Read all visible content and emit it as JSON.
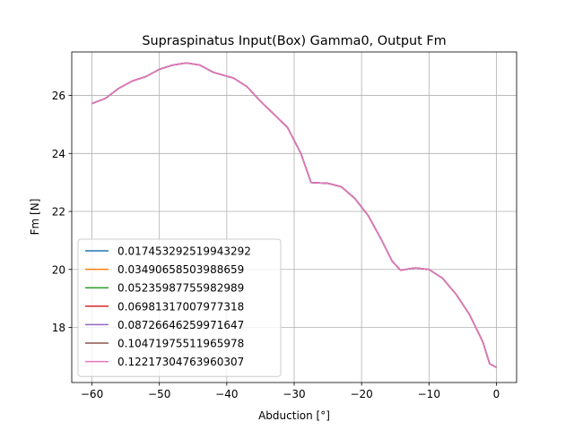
{
  "chart_data": {
    "type": "line",
    "title": "Supraspinatus Input(Box) Gamma0, Output Fm",
    "xlabel": "Abduction [°]",
    "ylabel": "Fm [N]",
    "xlim": [
      -63,
      3
    ],
    "ylim": [
      16.1,
      27.5
    ],
    "xticks": [
      -60,
      -50,
      -40,
      -30,
      -20,
      -10,
      0
    ],
    "xtick_labels": [
      "−60",
      "−50",
      "−40",
      "−30",
      "−20",
      "−10",
      "0"
    ],
    "yticks": [
      18,
      20,
      22,
      24,
      26
    ],
    "ytick_labels": [
      "18",
      "20",
      "22",
      "24",
      "26"
    ],
    "grid": true,
    "legend_position": "lower-left",
    "x": [
      -60,
      -58,
      -56,
      -54,
      -52,
      -50,
      -48,
      -46,
      -44,
      -42,
      -41,
      -39,
      -37,
      -35,
      -33,
      -31,
      -29,
      -27.5,
      -25,
      -23,
      -21,
      -19,
      -17,
      -15.5,
      -14.2,
      -13,
      -12,
      -10,
      -8,
      -6,
      -4,
      -2,
      -1,
      0
    ],
    "series": [
      {
        "name": "0.017453292519943292",
        "color": "#1f77b4"
      },
      {
        "name": "0.03490658503988659",
        "color": "#ff7f0e"
      },
      {
        "name": "0.05235987755982989",
        "color": "#2ca02c"
      },
      {
        "name": "0.06981317007977318",
        "color": "#d62728"
      },
      {
        "name": "0.08726646259971647",
        "color": "#9467bd"
      },
      {
        "name": "0.10471975511965978",
        "color": "#8c564b"
      },
      {
        "name": "0.12217304763960307",
        "color": "#e377c2"
      }
    ],
    "values": [
      25.72,
      25.9,
      26.25,
      26.5,
      26.65,
      26.9,
      27.05,
      27.12,
      27.05,
      26.8,
      26.73,
      26.6,
      26.3,
      25.8,
      25.35,
      24.9,
      24.0,
      23.0,
      22.97,
      22.85,
      22.45,
      21.85,
      21.0,
      20.3,
      19.97,
      20.02,
      20.05,
      20.0,
      19.7,
      19.15,
      18.45,
      17.5,
      16.75,
      16.62
    ]
  }
}
